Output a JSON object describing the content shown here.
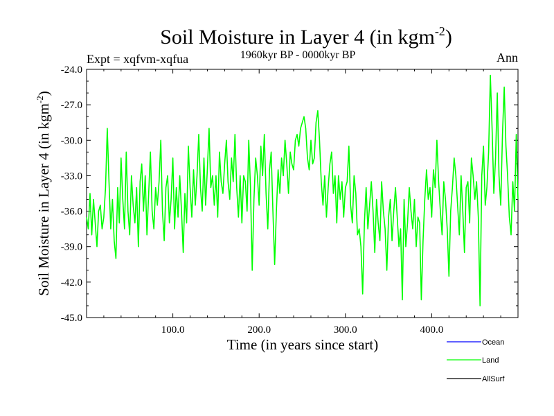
{
  "chart_data": {
    "type": "line",
    "title": "Soil Moisture in Layer 4 (in kgm",
    "title_sup": "-2",
    "title_close": ")",
    "left_label": "Expt = xqfvm-xqfua",
    "center_label": "1960kyr BP - 0000kyr BP",
    "right_label": "Ann",
    "xlabel": "Time (in years since start)",
    "ylabel": "Soil Moisture in Layer 4 (in kgm",
    "ylabel_sup": "-2",
    "ylabel_close": ")",
    "xlim": [
      0,
      500
    ],
    "ylim": [
      -45,
      -24
    ],
    "x_ticks": [
      100,
      200,
      300,
      400
    ],
    "x_tick_labels": [
      "100.0",
      "200.0",
      "300.0",
      "400.0"
    ],
    "y_ticks": [
      -24,
      -27,
      -30,
      -33,
      -36,
      -39,
      -42,
      -45
    ],
    "y_tick_labels": [
      "-24.0",
      "-27.0",
      "-30.0",
      "-33.0",
      "-36.0",
      "-39.0",
      "-42.0",
      "-45.0"
    ],
    "legend": [
      {
        "name": "Ocean",
        "color": "#0000ff"
      },
      {
        "name": "Land",
        "color": "#00ff00"
      },
      {
        "name": "AllSurf",
        "color": "#000000"
      }
    ],
    "series": [
      {
        "name": "Land",
        "color": "#00ff00",
        "x_start": 0,
        "x_step": 2,
        "values": [
          -36.5,
          -37.5,
          -34.5,
          -38.0,
          -35.0,
          -37.0,
          -39.0,
          -36.0,
          -35.5,
          -37.5,
          -36.5,
          -34.0,
          -29.0,
          -33.5,
          -37.5,
          -35.0,
          -38.5,
          -40.0,
          -34.0,
          -37.0,
          -31.5,
          -35.0,
          -37.5,
          -31.0,
          -36.0,
          -38.0,
          -33.0,
          -35.5,
          -37.0,
          -34.0,
          -39.0,
          -33.5,
          -32.0,
          -36.0,
          -33.0,
          -38.0,
          -34.5,
          -31.0,
          -36.0,
          -37.5,
          -34.0,
          -35.5,
          -33.5,
          -30.0,
          -36.0,
          -38.5,
          -34.0,
          -33.0,
          -37.0,
          -35.0,
          -31.5,
          -37.5,
          -34.0,
          -36.5,
          -33.0,
          -36.0,
          -39.5,
          -34.5,
          -37.0,
          -30.5,
          -34.0,
          -36.5,
          -32.5,
          -35.5,
          -33.0,
          -29.5,
          -34.0,
          -36.0,
          -31.5,
          -35.5,
          -32.5,
          -29.0,
          -34.0,
          -33.0,
          -35.5,
          -33.0,
          -36.5,
          -31.0,
          -33.5,
          -34.5,
          -32.0,
          -30.0,
          -33.5,
          -35.0,
          -31.5,
          -33.5,
          -29.5,
          -34.0,
          -36.5,
          -33.0,
          -37.0,
          -33.0,
          -33.5,
          -36.0,
          -30.0,
          -34.0,
          -41.0,
          -35.0,
          -31.5,
          -33.0,
          -35.5,
          -30.5,
          -33.0,
          -29.5,
          -34.5,
          -37.5,
          -32.5,
          -31.0,
          -36.0,
          -40.5,
          -36.0,
          -32.5,
          -34.5,
          -31.5,
          -33.0,
          -30.0,
          -32.0,
          -34.5,
          -31.0,
          -32.0,
          -32.5,
          -30.0,
          -29.5,
          -30.5,
          -29.0,
          -28.5,
          -28.0,
          -29.0,
          -31.5,
          -32.5,
          -30.0,
          -32.0,
          -31.5,
          -28.5,
          -27.5,
          -30.0,
          -33.5,
          -35.5,
          -33.0,
          -36.5,
          -34.0,
          -32.0,
          -31.0,
          -34.5,
          -33.0,
          -37.0,
          -33.0,
          -35.0,
          -33.5,
          -36.5,
          -34.0,
          -33.5,
          -30.5,
          -35.5,
          -37.0,
          -33.0,
          -34.5,
          -38.0,
          -37.5,
          -39.0,
          -43.0,
          -37.0,
          -34.0,
          -37.5,
          -35.5,
          -33.5,
          -36.0,
          -39.5,
          -35.0,
          -37.0,
          -38.5,
          -33.5,
          -36.0,
          -37.5,
          -41.0,
          -36.5,
          -35.0,
          -38.5,
          -36.0,
          -34.0,
          -36.5,
          -39.0,
          -37.5,
          -43.5,
          -35.0,
          -39.0,
          -37.0,
          -34.0,
          -36.0,
          -37.5,
          -35.0,
          -39.0,
          -36.5,
          -37.0,
          -43.5,
          -38.5,
          -35.0,
          -32.5,
          -35.0,
          -34.0,
          -36.5,
          -32.5,
          -34.0,
          -30.0,
          -33.5,
          -36.0,
          -38.0,
          -33.5,
          -35.0,
          -37.5,
          -41.5,
          -36.0,
          -34.0,
          -31.5,
          -33.0,
          -35.5,
          -38.0,
          -33.0,
          -36.0,
          -39.5,
          -34.0,
          -33.5,
          -37.0,
          -31.5,
          -33.0,
          -35.0,
          -33.5,
          -36.5,
          -44.0,
          -33.0,
          -30.5,
          -35.5,
          -34.0,
          -31.0,
          -24.5,
          -29.0,
          -34.5,
          -31.5,
          -26.0,
          -33.0,
          -35.5,
          -29.5,
          -25.5,
          -30.5,
          -33.0,
          -36.5,
          -38.0,
          -33.5,
          -36.0,
          -29.5,
          -35.0
        ]
      }
    ]
  }
}
